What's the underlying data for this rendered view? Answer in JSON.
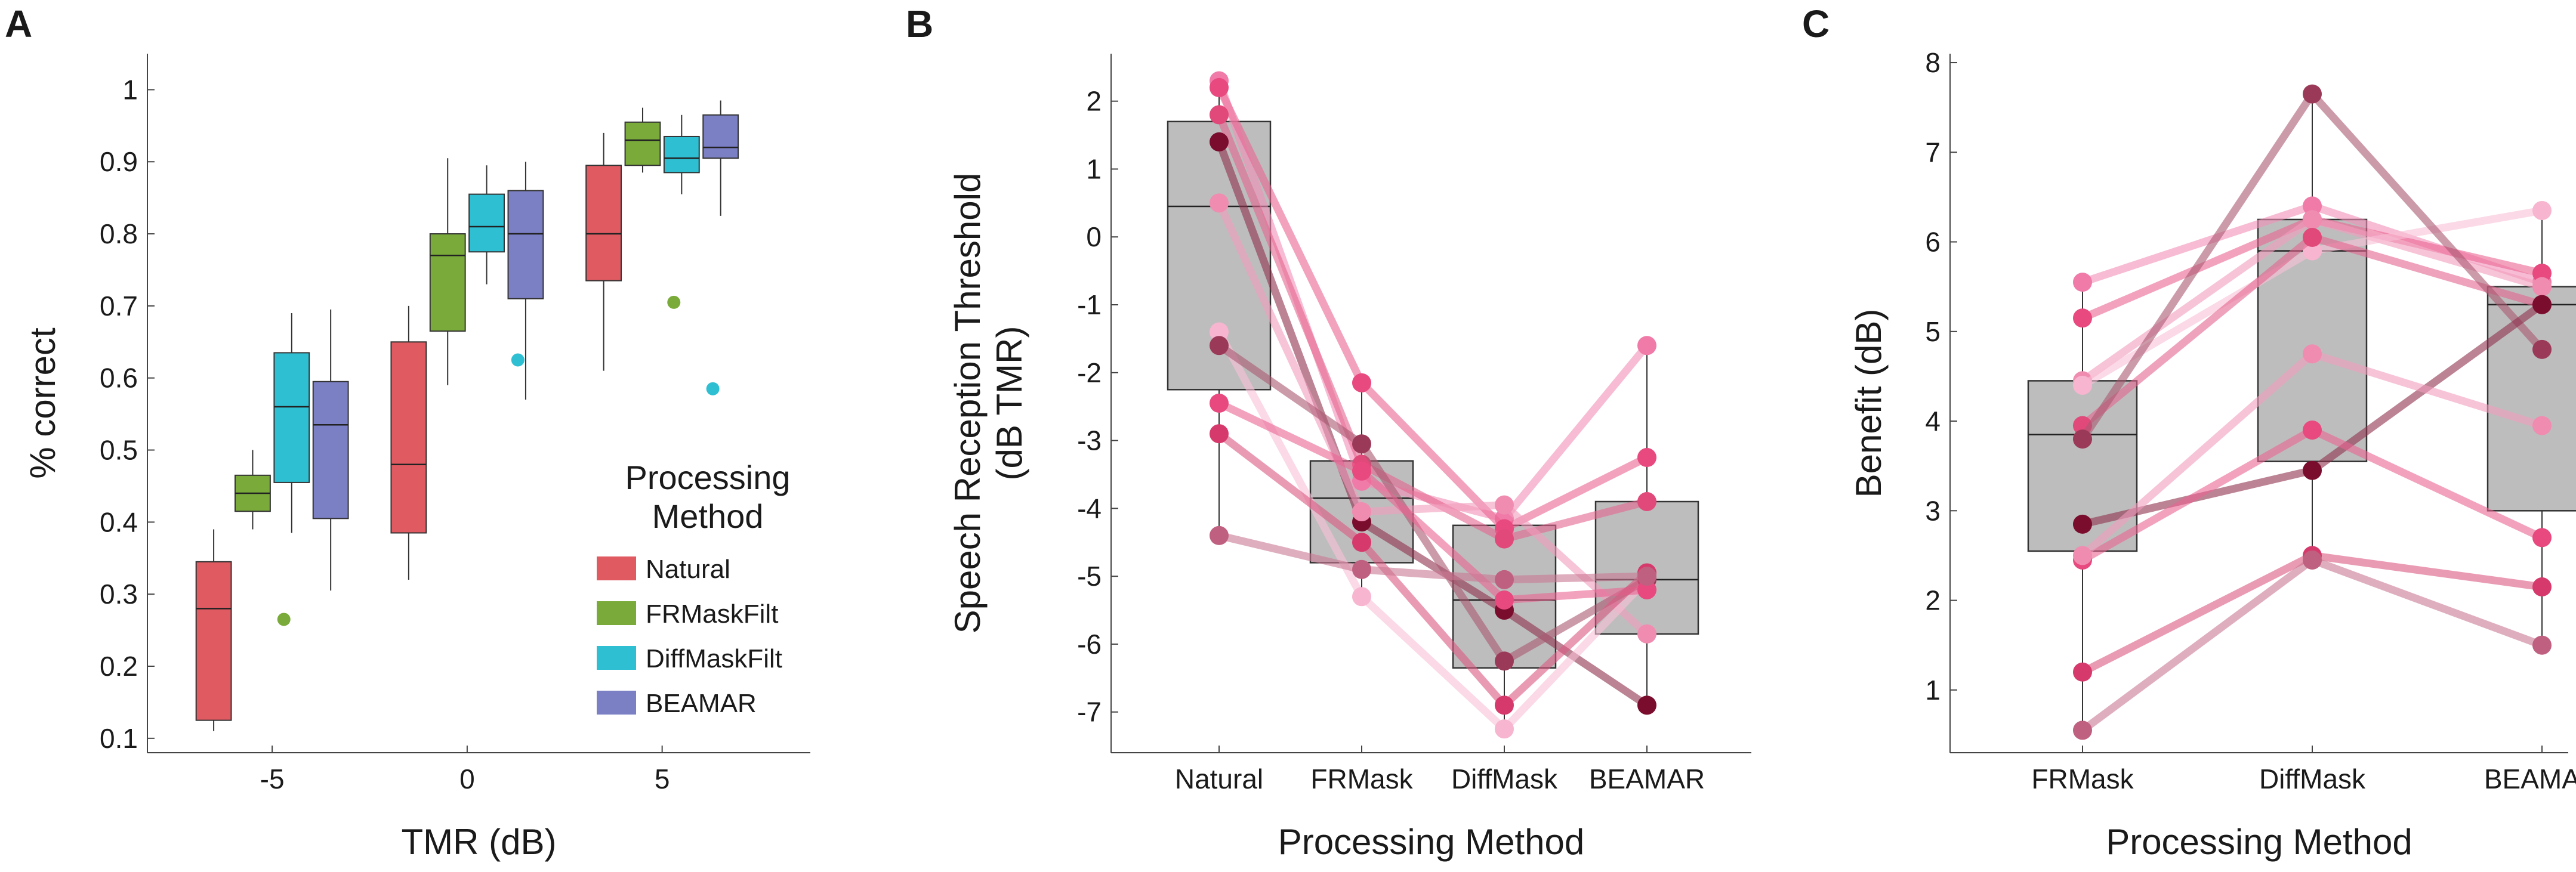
{
  "figure": {
    "panel_labels": [
      "A",
      "B",
      "C"
    ]
  },
  "chart_data": [
    {
      "panel": "A",
      "type": "box",
      "title": "",
      "xlabel": "TMR (dB)",
      "ylabel": "% correct",
      "ylim": [
        0.08,
        1.05
      ],
      "xlim": [
        -8.2,
        8.8
      ],
      "xticks": [
        -5,
        0,
        5
      ],
      "xtick_labels": [
        "-5",
        "0",
        "5"
      ],
      "yticks": [
        0.1,
        0.2,
        0.3,
        0.4,
        0.5,
        0.6,
        0.7,
        0.8,
        0.9,
        1
      ],
      "ytick_labels": [
        "0.1",
        "0.2",
        "0.3",
        "0.4",
        "0.5",
        "0.6",
        "0.7",
        "0.8",
        "0.9",
        "1"
      ],
      "legend": {
        "title_lines": [
          "Processing",
          "Method"
        ],
        "position": "bottom-right",
        "entries": [
          "Natural",
          "FRMaskFilt",
          "DiffMaskFilt",
          "BEAMAR"
        ]
      },
      "series": [
        {
          "name": "Natural",
          "color": "#e05a62",
          "offset": -1.5,
          "boxes": [
            {
              "tmr": -5,
              "whislo": 0.11,
              "q1": 0.125,
              "median": 0.28,
              "q3": 0.345,
              "whishi": 0.39,
              "outliers": []
            },
            {
              "tmr": 0,
              "whislo": 0.32,
              "q1": 0.385,
              "median": 0.48,
              "q3": 0.65,
              "whishi": 0.7,
              "outliers": []
            },
            {
              "tmr": 5,
              "whislo": 0.61,
              "q1": 0.735,
              "median": 0.8,
              "q3": 0.895,
              "whishi": 0.94,
              "outliers": []
            }
          ]
        },
        {
          "name": "FRMaskFilt",
          "color": "#7aab3a",
          "offset": -0.5,
          "boxes": [
            {
              "tmr": -5,
              "whislo": 0.39,
              "q1": 0.415,
              "median": 0.44,
              "q3": 0.465,
              "whishi": 0.5,
              "outliers": [
                0.265
              ]
            },
            {
              "tmr": 0,
              "whislo": 0.59,
              "q1": 0.665,
              "median": 0.77,
              "q3": 0.8,
              "whishi": 0.905,
              "outliers": []
            },
            {
              "tmr": 5,
              "whislo": 0.885,
              "q1": 0.895,
              "median": 0.93,
              "q3": 0.955,
              "whishi": 0.975,
              "outliers": [
                0.705
              ]
            }
          ]
        },
        {
          "name": "DiffMaskFilt",
          "color": "#2ebfd2",
          "offset": 0.5,
          "boxes": [
            {
              "tmr": -5,
              "whislo": 0.385,
              "q1": 0.455,
              "median": 0.56,
              "q3": 0.635,
              "whishi": 0.69,
              "outliers": []
            },
            {
              "tmr": 0,
              "whislo": 0.73,
              "q1": 0.775,
              "median": 0.81,
              "q3": 0.855,
              "whishi": 0.895,
              "outliers": [
                0.625
              ]
            },
            {
              "tmr": 5,
              "whislo": 0.855,
              "q1": 0.885,
              "median": 0.905,
              "q3": 0.935,
              "whishi": 0.965,
              "outliers": [
                0.585
              ]
            }
          ]
        },
        {
          "name": "BEAMAR",
          "color": "#7b7fc4",
          "offset": 1.5,
          "boxes": [
            {
              "tmr": -5,
              "whislo": 0.305,
              "q1": 0.405,
              "median": 0.535,
              "q3": 0.595,
              "whishi": 0.695,
              "outliers": []
            },
            {
              "tmr": 0,
              "whislo": 0.57,
              "q1": 0.71,
              "median": 0.8,
              "q3": 0.86,
              "whishi": 0.9,
              "outliers": []
            },
            {
              "tmr": 5,
              "whislo": 0.825,
              "q1": 0.905,
              "median": 0.92,
              "q3": 0.965,
              "whishi": 0.985,
              "outliers": []
            }
          ]
        }
      ]
    },
    {
      "panel": "B",
      "type": "box",
      "title": "",
      "xlabel": "Processing Method",
      "ylabel_lines": [
        "Speech Reception Threshold",
        "(dB TMR)"
      ],
      "ylim": [
        -7.6,
        2.7
      ],
      "categories": [
        "Natural",
        "FRMask",
        "DiffMask",
        "BEAMAR"
      ],
      "yticks": [
        2,
        1,
        0,
        -1,
        -2,
        -3,
        -4,
        -5,
        -6,
        -7
      ],
      "ytick_labels": [
        "2",
        "1",
        "0",
        "-1",
        "-2",
        "-3",
        "-4",
        "-5",
        "-6",
        "-7"
      ],
      "box_color": "#bdbdbd",
      "boxes": [
        {
          "category": "Natural",
          "whislo": -4.4,
          "q1": -2.25,
          "median": 0.45,
          "q3": 1.7,
          "whishi": 2.3
        },
        {
          "category": "FRMask",
          "whislo": -5.3,
          "q1": -4.8,
          "median": -3.85,
          "q3": -3.3,
          "whishi": -2.15
        },
        {
          "category": "DiffMask",
          "whislo": -7.25,
          "q1": -6.35,
          "median": -5.35,
          "q3": -4.25,
          "whishi": -3.95
        },
        {
          "category": "BEAMAR",
          "whislo": -6.9,
          "q1": -5.85,
          "median": -5.05,
          "q3": -3.9,
          "whishi": -1.6
        }
      ],
      "subjects": [
        {
          "name": "S1",
          "color": "#f07aa8",
          "values": [
            2.3,
            -3.6,
            -4.15,
            -1.6
          ]
        },
        {
          "name": "S2",
          "color": "#e8497f",
          "values": [
            2.2,
            -2.15,
            -4.3,
            -3.25
          ]
        },
        {
          "name": "S3",
          "color": "#e0497a",
          "values": [
            1.8,
            -3.35,
            -4.45,
            -3.9
          ]
        },
        {
          "name": "S4",
          "color": "#7a0d2e",
          "values": [
            1.4,
            -4.2,
            -5.5,
            -6.9
          ]
        },
        {
          "name": "S5",
          "color": "#f08cb0",
          "values": [
            0.5,
            -4.05,
            -3.95,
            -5.85
          ]
        },
        {
          "name": "S6",
          "color": "#f7b5cf",
          "values": [
            -1.4,
            -5.3,
            -7.25,
            -5.05
          ]
        },
        {
          "name": "S7",
          "color": "#9b3a58",
          "values": [
            -1.6,
            -3.05,
            -6.25,
            -5.05
          ]
        },
        {
          "name": "S8",
          "color": "#e8497f",
          "values": [
            -2.45,
            -3.45,
            -5.35,
            -5.2
          ]
        },
        {
          "name": "S9",
          "color": "#d63a6c",
          "values": [
            -2.9,
            -4.5,
            -6.9,
            -4.95
          ]
        },
        {
          "name": "S10",
          "color": "#c06080",
          "values": [
            -4.4,
            -4.9,
            -5.05,
            -5.0
          ]
        }
      ]
    },
    {
      "panel": "C",
      "type": "box",
      "title": "",
      "xlabel": "Processing Method",
      "ylabel": "Benefit (dB)",
      "ylim": [
        0.3,
        8.1
      ],
      "categories": [
        "FRMask",
        "DiffMask",
        "BEAMAR"
      ],
      "yticks": [
        1,
        2,
        3,
        4,
        5,
        6,
        7,
        8
      ],
      "ytick_labels": [
        "1",
        "2",
        "3",
        "4",
        "5",
        "6",
        "7",
        "8"
      ],
      "box_color": "#bdbdbd",
      "boxes": [
        {
          "category": "FRMask",
          "whislo": 0.55,
          "q1": 2.55,
          "median": 3.85,
          "q3": 4.45,
          "whishi": 5.55
        },
        {
          "category": "DiffMask",
          "whislo": 2.45,
          "q1": 3.55,
          "median": 5.9,
          "q3": 6.25,
          "whishi": 7.65
        },
        {
          "category": "BEAMAR",
          "whislo": 1.5,
          "q1": 3.0,
          "median": 5.3,
          "q3": 5.5,
          "whishi": 6.35
        }
      ],
      "subjects": [
        {
          "name": "S1",
          "color": "#f07aa8",
          "values": [
            5.55,
            6.4,
            5.55
          ]
        },
        {
          "name": "S2",
          "color": "#e8497f",
          "values": [
            5.15,
            6.25,
            5.65
          ]
        },
        {
          "name": "S3",
          "color": "#f08cb0",
          "values": [
            4.45,
            6.25,
            5.5
          ]
        },
        {
          "name": "S4",
          "color": "#f7b5cf",
          "values": [
            4.4,
            5.9,
            6.35
          ]
        },
        {
          "name": "S5",
          "color": "#e0497a",
          "values": [
            3.95,
            6.05,
            5.3
          ]
        },
        {
          "name": "S6",
          "color": "#9b3a58",
          "values": [
            3.8,
            7.65,
            4.8
          ]
        },
        {
          "name": "S7",
          "color": "#7a0d2e",
          "values": [
            2.85,
            3.45,
            5.3
          ]
        },
        {
          "name": "S8",
          "color": "#e8497f",
          "values": [
            2.45,
            3.9,
            2.7
          ]
        },
        {
          "name": "S9",
          "color": "#f08cb0",
          "values": [
            2.5,
            4.75,
            3.95
          ]
        },
        {
          "name": "S10",
          "color": "#d63a6c",
          "values": [
            1.2,
            2.5,
            2.15
          ]
        },
        {
          "name": "S11",
          "color": "#c06080",
          "values": [
            0.55,
            2.45,
            1.5
          ]
        }
      ]
    }
  ]
}
